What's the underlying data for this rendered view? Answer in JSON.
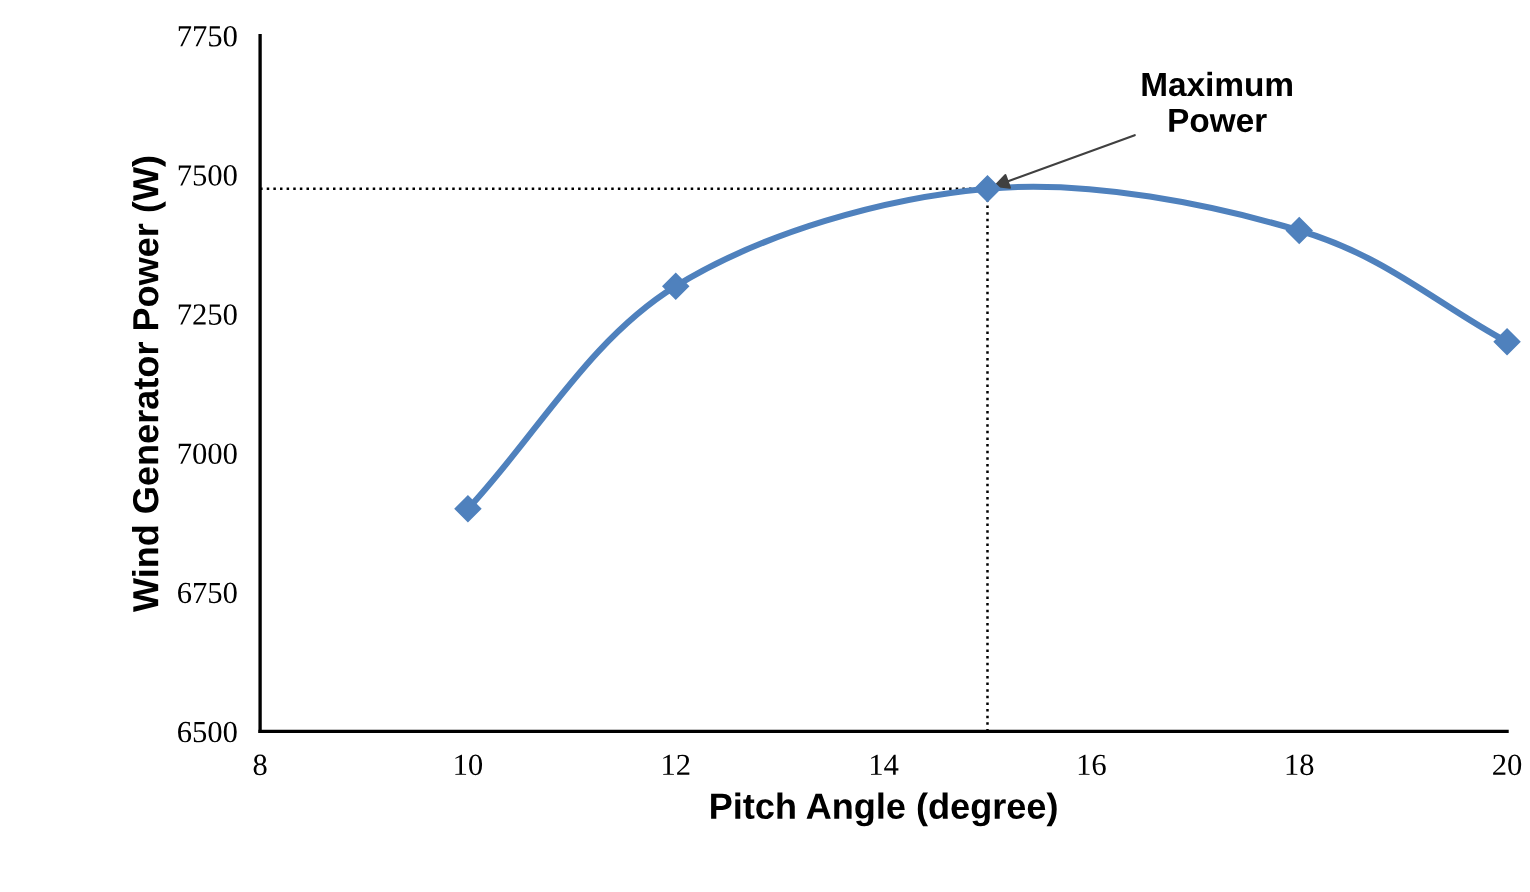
{
  "chart_data": {
    "type": "line",
    "xlabel": "Pitch Angle (degree)",
    "ylabel": "Wind Generator Power (W)",
    "x": [
      10,
      12,
      15,
      18,
      20
    ],
    "series": [
      {
        "color": "#4f81bd",
        "values": [
          6900,
          7300,
          7475,
          7400,
          7200
        ]
      }
    ],
    "xlim": [
      8,
      20
    ],
    "xticks": [
      8,
      10,
      12,
      14,
      16,
      18,
      20
    ],
    "ylim": [
      6500,
      7750
    ],
    "yticks": [
      6500,
      6750,
      7000,
      7250,
      7500,
      7750
    ],
    "marker": "diamond",
    "line_style": "solid",
    "grid": false,
    "ref_lines": [
      {
        "axis": "y",
        "value": 7475,
        "line_style": "dotted",
        "color": "#000000"
      },
      {
        "axis": "x",
        "value": 15,
        "line_style": "dotted",
        "color": "#000000"
      }
    ],
    "annotations": [
      {
        "text": "Maximum\nPower",
        "x": 15,
        "y": 7475
      }
    ]
  }
}
